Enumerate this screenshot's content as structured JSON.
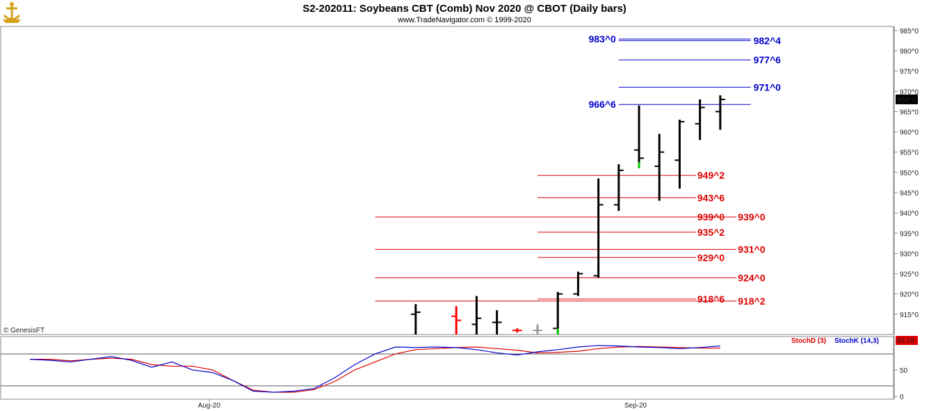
{
  "header": {
    "title": "S2-202011:  Soybeans CBT (Comb) Nov 2020 @ CBOT  (Daily bars)",
    "subtitle": "www.TradeNavigator.com © 1999-2020",
    "logo_icon": "anchor-trophy-icon",
    "watermark": "© GenesisFT"
  },
  "colors": {
    "bar": "#000000",
    "bar_down": "#ff0000",
    "bar_up_tail": "#00cc00",
    "bar_flat": "#999999",
    "support": "#dd0000",
    "resistance": "#0000cc",
    "stoch_d": "#dd0000",
    "stoch_k": "#0000cc",
    "last_price_bg": "#000000",
    "stoch_value_bg": "#dd0000"
  },
  "chart_data": [
    {
      "type": "ohlc",
      "title": "S2-202011:  Soybeans CBT (Comb) Nov 2020 @ CBOT  (Daily bars)",
      "ylim": [
        910,
        986
      ],
      "y_ticks": [
        915,
        920,
        925,
        930,
        935,
        940,
        945,
        950,
        955,
        960,
        965,
        970,
        975,
        980,
        985
      ],
      "y_tick_labels": [
        "915^0",
        "920^0",
        "925^0",
        "930^0",
        "935^0",
        "940^0",
        "945^0",
        "950^0",
        "955^0",
        "960^0",
        "965^0",
        "970^0",
        "975^0",
        "980^0",
        "985^0"
      ],
      "x_tick_labels": [
        {
          "label": "Aug-20",
          "index": 9
        },
        {
          "label": "Sep-20",
          "index": 30
        }
      ],
      "last_price_label": "968^0",
      "last_price": 968,
      "bars": [
        {
          "i": 19,
          "o": 915,
          "h": 917.5,
          "l": 909,
          "c": 915.5,
          "color": "bar"
        },
        {
          "i": 21,
          "o": 914.5,
          "h": 917,
          "l": 909,
          "c": 913.5,
          "color": "bar_down"
        },
        {
          "i": 22,
          "o": 912.5,
          "h": 919.5,
          "l": 909,
          "c": 914,
          "color": "bar"
        },
        {
          "i": 23,
          "o": 913,
          "h": 916,
          "l": 909,
          "c": 913,
          "color": "bar"
        },
        {
          "i": 24,
          "o": 911,
          "h": 911.5,
          "l": 910.5,
          "c": 911,
          "color": "bar_down"
        },
        {
          "i": 25,
          "o": 911,
          "h": 912.5,
          "l": 910,
          "c": 911,
          "color": "bar_flat"
        },
        {
          "i": 26,
          "o": 911.5,
          "h": 920.5,
          "l": 910.5,
          "c": 920,
          "color": "bar"
        },
        {
          "i": 27,
          "o": 920,
          "h": 925.5,
          "l": 919.5,
          "c": 925,
          "color": "bar"
        },
        {
          "i": 28,
          "o": 924.5,
          "h": 948.5,
          "l": 924,
          "c": 942,
          "color": "bar"
        },
        {
          "i": 29,
          "o": 942,
          "h": 952,
          "l": 940.5,
          "c": 950.5,
          "color": "bar"
        },
        {
          "i": 30,
          "o": 955.5,
          "h": 966.5,
          "l": 951.5,
          "c": 953.5,
          "color": "bar"
        },
        {
          "i": 31,
          "o": 951.5,
          "h": 959.5,
          "l": 943,
          "c": 955,
          "color": "bar"
        },
        {
          "i": 32,
          "o": 953,
          "h": 963,
          "l": 946,
          "c": 962.5,
          "color": "bar"
        },
        {
          "i": 33,
          "o": 962,
          "h": 968,
          "l": 958,
          "c": 966,
          "color": "bar"
        },
        {
          "i": 34,
          "o": 965,
          "h": 969,
          "l": 960.5,
          "c": 968,
          "color": "bar"
        }
      ],
      "levels": [
        {
          "label": "983^0",
          "value": 982.9,
          "color": "resistance",
          "from": 29,
          "to": 35.5,
          "label_pos": "left"
        },
        {
          "label": "982^4",
          "value": 982.5,
          "color": "resistance",
          "from": 29,
          "to": 35.5,
          "label_pos": "right"
        },
        {
          "label": "977^6",
          "value": 977.75,
          "color": "resistance",
          "from": 29,
          "to": 35.5,
          "label_pos": "right"
        },
        {
          "label": "971^0",
          "value": 971,
          "color": "resistance",
          "from": 29,
          "to": 35.5,
          "label_pos": "right"
        },
        {
          "label": "966^6",
          "value": 966.75,
          "color": "resistance",
          "from": 29,
          "to": 35.5,
          "label_pos": "left"
        },
        {
          "label": "949^2",
          "value": 949.25,
          "color": "support",
          "from": 25,
          "to": 32.8,
          "label_pos": "end"
        },
        {
          "label": "943^6",
          "value": 943.75,
          "color": "support",
          "from": 25,
          "to": 32.8,
          "label_pos": "end"
        },
        {
          "label": "939^0",
          "value": 939,
          "color": "support",
          "from": 17,
          "to": 32.8,
          "label_pos": "end"
        },
        {
          "label": "939^0",
          "value": 939,
          "color": "support",
          "from": 32.8,
          "to": 34.8,
          "label_pos": "end"
        },
        {
          "label": "935^2",
          "value": 935.25,
          "color": "support",
          "from": 25,
          "to": 32.8,
          "label_pos": "end"
        },
        {
          "label": "931^0",
          "value": 931,
          "color": "support",
          "from": 17,
          "to": 34.8,
          "label_pos": "end"
        },
        {
          "label": "929^0",
          "value": 929,
          "color": "support",
          "from": 25,
          "to": 32.8,
          "label_pos": "end"
        },
        {
          "label": "924^0",
          "value": 924,
          "color": "support",
          "from": 17,
          "to": 34.8,
          "label_pos": "end"
        },
        {
          "label": "918^6",
          "value": 918.75,
          "color": "support",
          "from": 25,
          "to": 32.8,
          "label_pos": "end"
        },
        {
          "label": "918^2",
          "value": 918.25,
          "color": "support",
          "from": 17,
          "to": 34.8,
          "label_pos": "end"
        }
      ]
    },
    {
      "type": "line",
      "title": "",
      "ylim": [
        -5,
        110
      ],
      "y_ticks": [
        0,
        50
      ],
      "y_tick_labels": [
        "0",
        "50"
      ],
      "reference_lines": [
        80,
        20
      ],
      "value_label": "92.18",
      "series": [
        {
          "name": "StochD (3)",
          "color": "stoch_d",
          "values": [
            [
              0,
              70
            ],
            [
              1,
              70
            ],
            [
              2,
              67
            ],
            [
              3,
              70
            ],
            [
              4,
              72
            ],
            [
              5,
              70
            ],
            [
              6,
              60
            ],
            [
              7,
              57
            ],
            [
              8,
              57
            ],
            [
              9,
              50
            ],
            [
              10,
              30
            ],
            [
              11,
              12
            ],
            [
              12,
              8
            ],
            [
              13,
              8
            ],
            [
              14,
              13
            ],
            [
              15,
              28
            ],
            [
              16,
              50
            ],
            [
              17,
              65
            ],
            [
              18,
              80
            ],
            [
              19,
              88
            ],
            [
              20,
              90
            ],
            [
              21,
              92
            ],
            [
              22,
              93
            ],
            [
              23,
              90
            ],
            [
              24,
              87
            ],
            [
              25,
              82
            ],
            [
              26,
              83
            ],
            [
              27,
              85
            ],
            [
              28,
              90
            ],
            [
              29,
              93
            ],
            [
              30,
              94
            ],
            [
              31,
              93
            ],
            [
              32,
              92
            ],
            [
              33,
              91
            ],
            [
              34,
              91
            ]
          ]
        },
        {
          "name": "StochK (14,3)",
          "color": "stoch_k",
          "values": [
            [
              0,
              70
            ],
            [
              1,
              68
            ],
            [
              2,
              65
            ],
            [
              3,
              70
            ],
            [
              4,
              75
            ],
            [
              5,
              68
            ],
            [
              6,
              55
            ],
            [
              7,
              65
            ],
            [
              8,
              50
            ],
            [
              9,
              45
            ],
            [
              10,
              30
            ],
            [
              11,
              10
            ],
            [
              12,
              8
            ],
            [
              13,
              10
            ],
            [
              14,
              15
            ],
            [
              15,
              35
            ],
            [
              16,
              60
            ],
            [
              17,
              80
            ],
            [
              18,
              93
            ],
            [
              19,
              92
            ],
            [
              20,
              93
            ],
            [
              21,
              92
            ],
            [
              22,
              88
            ],
            [
              23,
              82
            ],
            [
              24,
              78
            ],
            [
              25,
              84
            ],
            [
              26,
              88
            ],
            [
              27,
              93
            ],
            [
              28,
              96
            ],
            [
              29,
              95
            ],
            [
              30,
              93
            ],
            [
              31,
              92
            ],
            [
              32,
              90
            ],
            [
              33,
              92
            ],
            [
              34,
              95
            ]
          ]
        }
      ]
    }
  ]
}
